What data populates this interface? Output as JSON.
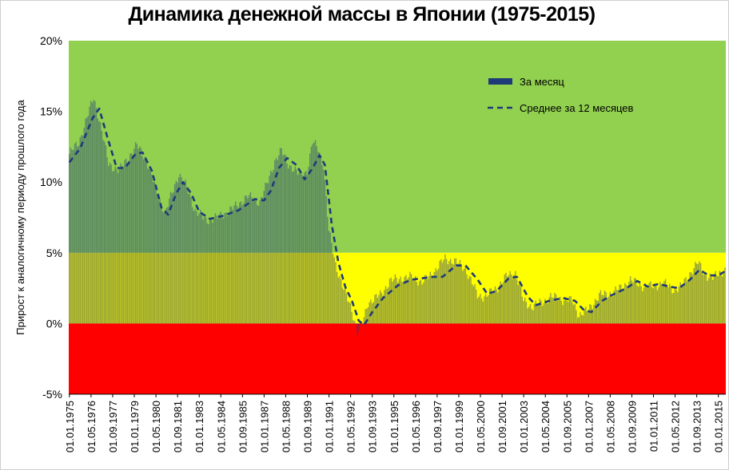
{
  "chart_data": {
    "type": "bar",
    "title": "Динамика денежной массы в Японии (1975-2015)",
    "ylabel": "Прирост к аналогичному периоду прошлого года",
    "ylim": [
      -5,
      20
    ],
    "y_ticks": [
      "-5%",
      "0%",
      "5%",
      "10%",
      "15%",
      "20%"
    ],
    "x_tick_labels": [
      "01.01.1975",
      "01.05.1976",
      "01.09.1977",
      "01.01.1979",
      "01.05.1980",
      "01.09.1981",
      "01.01.1983",
      "01.05.1984",
      "01.09.1985",
      "01.01.1987",
      "01.05.1988",
      "01.09.1989",
      "01.01.1991",
      "01.05.1992",
      "01.09.1993",
      "01.01.1995",
      "01.05.1996",
      "01.09.1997",
      "01.01.1999",
      "01.05.2000",
      "01.09.2001",
      "01.01.2003",
      "01.05.2004",
      "01.09.2005",
      "01.01.2007",
      "01.05.2008",
      "01.09.2009",
      "01.01.2011",
      "01.05.2012",
      "01.09.2013",
      "01.01.2015"
    ],
    "background_zones": [
      {
        "from": 5,
        "to": 20,
        "color": "#92d050"
      },
      {
        "from": 0,
        "to": 5,
        "color": "#ffff00"
      },
      {
        "from": -5,
        "to": 0,
        "color": "#ff0000"
      }
    ],
    "series": [
      {
        "name": "За месяц",
        "kind": "bar",
        "color": "#1f3a78",
        "date_range": [
          "1975-01",
          "2015-06"
        ],
        "anchors": [
          [
            "1975-01",
            12.0
          ],
          [
            "1975-08",
            12.8
          ],
          [
            "1976-03",
            14.8
          ],
          [
            "1976-07",
            16.0
          ],
          [
            "1976-11",
            14.5
          ],
          [
            "1977-06",
            11.3
          ],
          [
            "1978-02",
            10.8
          ],
          [
            "1978-09",
            11.8
          ],
          [
            "1979-03",
            12.6
          ],
          [
            "1979-10",
            11.6
          ],
          [
            "1980-06",
            9.2
          ],
          [
            "1980-12",
            7.8
          ],
          [
            "1981-06",
            9.5
          ],
          [
            "1981-10",
            10.6
          ],
          [
            "1982-04",
            9.6
          ],
          [
            "1982-10",
            8.0
          ],
          [
            "1983-06",
            7.3
          ],
          [
            "1984-03",
            7.5
          ],
          [
            "1985-03",
            8.2
          ],
          [
            "1986-01",
            9.0
          ],
          [
            "1986-10",
            8.6
          ],
          [
            "1987-03",
            9.8
          ],
          [
            "1987-09",
            11.5
          ],
          [
            "1988-02",
            12.2
          ],
          [
            "1988-07",
            11.3
          ],
          [
            "1989-03",
            10.5
          ],
          [
            "1989-09",
            10.8
          ],
          [
            "1990-01",
            12.8
          ],
          [
            "1990-05",
            12.4
          ],
          [
            "1990-09",
            11.2
          ],
          [
            "1991-01",
            6.5
          ],
          [
            "1991-06",
            4.2
          ],
          [
            "1991-12",
            2.4
          ],
          [
            "1992-06",
            1.0
          ],
          [
            "1992-10",
            -0.6
          ],
          [
            "1993-02",
            0.0
          ],
          [
            "1993-06",
            1.5
          ],
          [
            "1994-03",
            2.0
          ],
          [
            "1994-10",
            3.0
          ],
          [
            "1995-06",
            3.2
          ],
          [
            "1996-03",
            3.3
          ],
          [
            "1996-10",
            2.9
          ],
          [
            "1997-07",
            3.7
          ],
          [
            "1998-03",
            4.6
          ],
          [
            "1998-10",
            4.4
          ],
          [
            "1999-06",
            3.9
          ],
          [
            "2000-03",
            2.0
          ],
          [
            "2000-09",
            1.9
          ],
          [
            "2001-06",
            2.6
          ],
          [
            "2002-01",
            3.4
          ],
          [
            "2002-07",
            3.6
          ],
          [
            "2003-01",
            1.6
          ],
          [
            "2003-07",
            1.2
          ],
          [
            "2004-03",
            1.5
          ],
          [
            "2004-09",
            1.9
          ],
          [
            "2005-06",
            1.7
          ],
          [
            "2006-01",
            1.6
          ],
          [
            "2006-06",
            0.6
          ],
          [
            "2006-12",
            0.9
          ],
          [
            "2007-09",
            2.0
          ],
          [
            "2008-04",
            2.1
          ],
          [
            "2009-01",
            2.5
          ],
          [
            "2009-08",
            3.1
          ],
          [
            "2010-03",
            2.7
          ],
          [
            "2011-01",
            2.6
          ],
          [
            "2011-08",
            2.9
          ],
          [
            "2012-04",
            2.4
          ],
          [
            "2012-10",
            2.6
          ],
          [
            "2013-05",
            3.7
          ],
          [
            "2013-10",
            4.3
          ],
          [
            "2014-03",
            3.5
          ],
          [
            "2014-09",
            3.2
          ],
          [
            "2015-02",
            3.6
          ],
          [
            "2015-06",
            3.8
          ]
        ]
      },
      {
        "name": "Среднее за 12 месяцев",
        "kind": "dashed-line",
        "color": "#1f3a78",
        "points": [
          [
            "1975-01",
            11.4
          ],
          [
            "1975-09",
            12.4
          ],
          [
            "1976-06",
            14.5
          ],
          [
            "1976-11",
            15.2
          ],
          [
            "1977-05",
            13.2
          ],
          [
            "1977-12",
            11.0
          ],
          [
            "1978-06",
            11.0
          ],
          [
            "1979-02",
            12.0
          ],
          [
            "1979-07",
            12.1
          ],
          [
            "1980-02",
            10.8
          ],
          [
            "1980-09",
            8.2
          ],
          [
            "1981-02",
            7.7
          ],
          [
            "1981-08",
            9.2
          ],
          [
            "1982-01",
            10.0
          ],
          [
            "1982-07",
            9.2
          ],
          [
            "1983-01",
            7.9
          ],
          [
            "1983-09",
            7.4
          ],
          [
            "1984-06",
            7.6
          ],
          [
            "1985-06",
            8.0
          ],
          [
            "1986-06",
            8.8
          ],
          [
            "1987-01",
            8.7
          ],
          [
            "1987-06",
            9.4
          ],
          [
            "1987-12",
            11.0
          ],
          [
            "1988-06",
            11.7
          ],
          [
            "1989-01",
            11.2
          ],
          [
            "1989-07",
            10.2
          ],
          [
            "1990-01",
            11.0
          ],
          [
            "1990-06",
            11.9
          ],
          [
            "1990-10",
            11.2
          ],
          [
            "1991-03",
            7.0
          ],
          [
            "1991-08",
            4.3
          ],
          [
            "1992-01",
            2.6
          ],
          [
            "1992-06",
            1.6
          ],
          [
            "1992-11",
            0.2
          ],
          [
            "1993-03",
            -0.1
          ],
          [
            "1993-09",
            0.8
          ],
          [
            "1994-05",
            1.8
          ],
          [
            "1995-04",
            2.7
          ],
          [
            "1996-02",
            3.1
          ],
          [
            "1996-10",
            3.2
          ],
          [
            "1997-06",
            3.3
          ],
          [
            "1998-01",
            3.3
          ],
          [
            "1998-11",
            4.1
          ],
          [
            "1999-06",
            4.1
          ],
          [
            "2000-03",
            3.1
          ],
          [
            "2000-10",
            2.1
          ],
          [
            "2001-05",
            2.3
          ],
          [
            "2002-02",
            3.2
          ],
          [
            "2002-08",
            3.3
          ],
          [
            "2003-04",
            1.9
          ],
          [
            "2003-10",
            1.3
          ],
          [
            "2004-08",
            1.6
          ],
          [
            "2005-06",
            1.8
          ],
          [
            "2006-03",
            1.6
          ],
          [
            "2006-09",
            1.0
          ],
          [
            "2007-03",
            0.8
          ],
          [
            "2007-11",
            1.6
          ],
          [
            "2008-06",
            2.0
          ],
          [
            "2009-05",
            2.5
          ],
          [
            "2010-01",
            3.0
          ],
          [
            "2010-09",
            2.6
          ],
          [
            "2011-05",
            2.8
          ],
          [
            "2012-01",
            2.6
          ],
          [
            "2012-08",
            2.5
          ],
          [
            "2013-04",
            3.1
          ],
          [
            "2013-11",
            3.8
          ],
          [
            "2014-06",
            3.4
          ],
          [
            "2015-01",
            3.4
          ],
          [
            "2015-06",
            3.7
          ]
        ]
      }
    ],
    "legend": {
      "placement": "top-right-inside"
    }
  }
}
